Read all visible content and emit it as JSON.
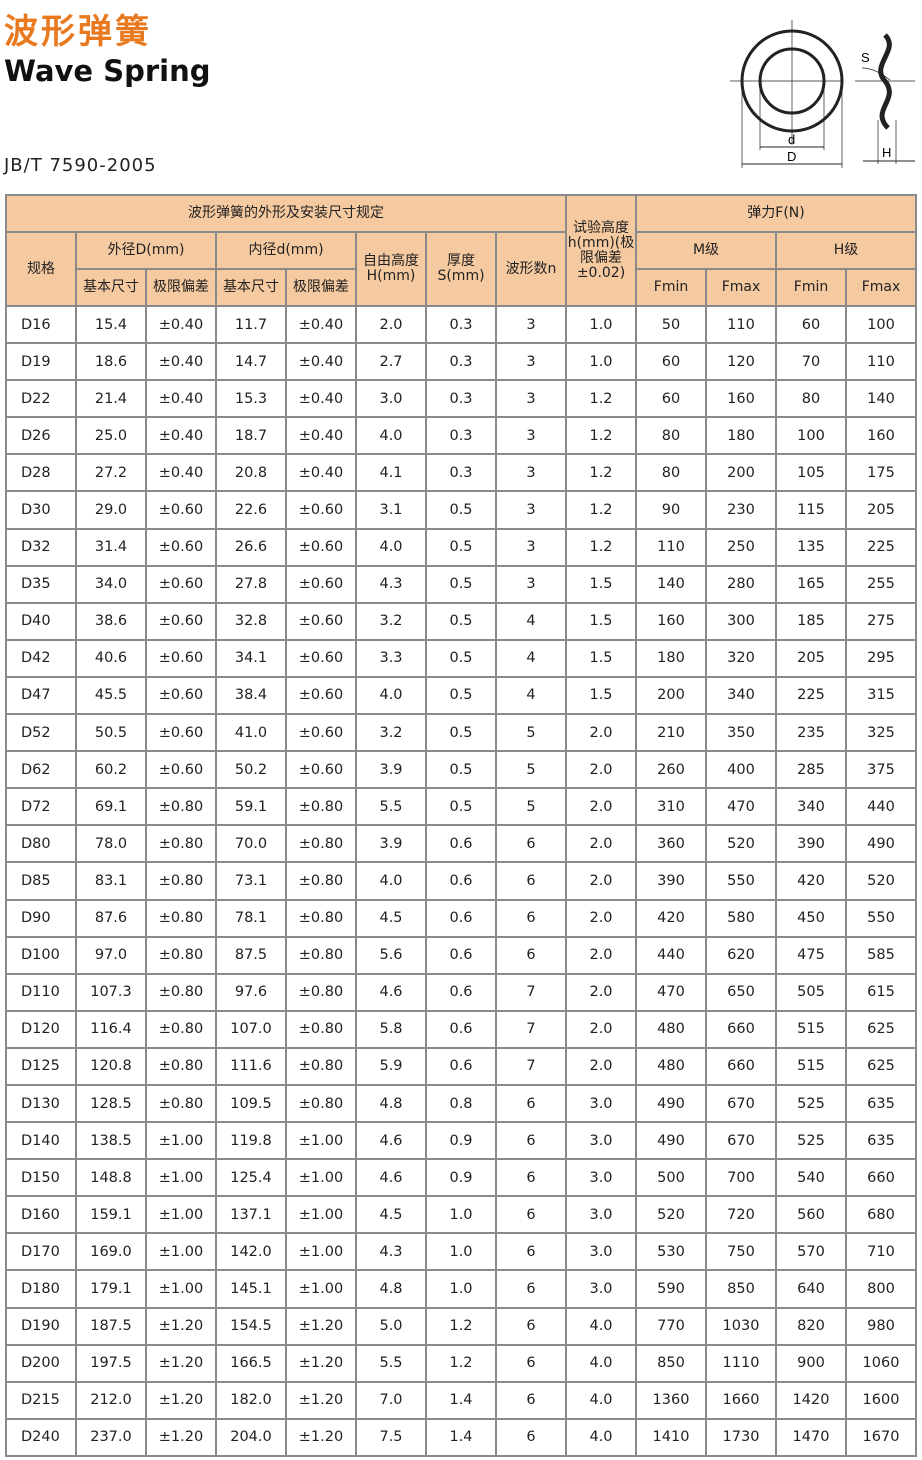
{
  "title_cn": "波形弹簧",
  "title_en": "Wave Spring",
  "standard": "JB/T 7590-2005",
  "diagram_labels": {
    "s": "S",
    "d": "d",
    "D": "D",
    "H": "H"
  },
  "header": {
    "group_dims": "波形弹簧的外形及安装尺寸规定",
    "spec": "规格",
    "outer": "外径D(mm)",
    "inner": "内径d(mm)",
    "basic": "基本尺寸",
    "tol": "极限偏差",
    "free_height": "自由高度H(mm)",
    "thickness": "厚度S(mm)",
    "waves": "波形数n",
    "test_height": "试验高度h(mm)(极限偏差±0.02)",
    "force": "弹力F(N)",
    "m_grade": "M级",
    "h_grade": "H级",
    "fmin": "Fmin",
    "fmax": "Fmax"
  },
  "rows": [
    [
      "D16",
      "15.4",
      "±0.40",
      "11.7",
      "±0.40",
      "2.0",
      "0.3",
      "3",
      "1.0",
      "50",
      "110",
      "60",
      "100"
    ],
    [
      "D19",
      "18.6",
      "±0.40",
      "14.7",
      "±0.40",
      "2.7",
      "0.3",
      "3",
      "1.0",
      "60",
      "120",
      "70",
      "110"
    ],
    [
      "D22",
      "21.4",
      "±0.40",
      "15.3",
      "±0.40",
      "3.0",
      "0.3",
      "3",
      "1.2",
      "60",
      "160",
      "80",
      "140"
    ],
    [
      "D26",
      "25.0",
      "±0.40",
      "18.7",
      "±0.40",
      "4.0",
      "0.3",
      "3",
      "1.2",
      "80",
      "180",
      "100",
      "160"
    ],
    [
      "D28",
      "27.2",
      "±0.40",
      "20.8",
      "±0.40",
      "4.1",
      "0.3",
      "3",
      "1.2",
      "80",
      "200",
      "105",
      "175"
    ],
    [
      "D30",
      "29.0",
      "±0.60",
      "22.6",
      "±0.60",
      "3.1",
      "0.5",
      "3",
      "1.2",
      "90",
      "230",
      "115",
      "205"
    ],
    [
      "D32",
      "31.4",
      "±0.60",
      "26.6",
      "±0.60",
      "4.0",
      "0.5",
      "3",
      "1.2",
      "110",
      "250",
      "135",
      "225"
    ],
    [
      "D35",
      "34.0",
      "±0.60",
      "27.8",
      "±0.60",
      "4.3",
      "0.5",
      "3",
      "1.5",
      "140",
      "280",
      "165",
      "255"
    ],
    [
      "D40",
      "38.6",
      "±0.60",
      "32.8",
      "±0.60",
      "3.2",
      "0.5",
      "4",
      "1.5",
      "160",
      "300",
      "185",
      "275"
    ],
    [
      "D42",
      "40.6",
      "±0.60",
      "34.1",
      "±0.60",
      "3.3",
      "0.5",
      "4",
      "1.5",
      "180",
      "320",
      "205",
      "295"
    ],
    [
      "D47",
      "45.5",
      "±0.60",
      "38.4",
      "±0.60",
      "4.0",
      "0.5",
      "4",
      "1.5",
      "200",
      "340",
      "225",
      "315"
    ],
    [
      "D52",
      "50.5",
      "±0.60",
      "41.0",
      "±0.60",
      "3.2",
      "0.5",
      "5",
      "2.0",
      "210",
      "350",
      "235",
      "325"
    ],
    [
      "D62",
      "60.2",
      "±0.60",
      "50.2",
      "±0.60",
      "3.9",
      "0.5",
      "5",
      "2.0",
      "260",
      "400",
      "285",
      "375"
    ],
    [
      "D72",
      "69.1",
      "±0.80",
      "59.1",
      "±0.80",
      "5.5",
      "0.5",
      "5",
      "2.0",
      "310",
      "470",
      "340",
      "440"
    ],
    [
      "D80",
      "78.0",
      "±0.80",
      "70.0",
      "±0.80",
      "3.9",
      "0.6",
      "6",
      "2.0",
      "360",
      "520",
      "390",
      "490"
    ],
    [
      "D85",
      "83.1",
      "±0.80",
      "73.1",
      "±0.80",
      "4.0",
      "0.6",
      "6",
      "2.0",
      "390",
      "550",
      "420",
      "520"
    ],
    [
      "D90",
      "87.6",
      "±0.80",
      "78.1",
      "±0.80",
      "4.5",
      "0.6",
      "6",
      "2.0",
      "420",
      "580",
      "450",
      "550"
    ],
    [
      "D100",
      "97.0",
      "±0.80",
      "87.5",
      "±0.80",
      "5.6",
      "0.6",
      "6",
      "2.0",
      "440",
      "620",
      "475",
      "585"
    ],
    [
      "D110",
      "107.3",
      "±0.80",
      "97.6",
      "±0.80",
      "4.6",
      "0.6",
      "7",
      "2.0",
      "470",
      "650",
      "505",
      "615"
    ],
    [
      "D120",
      "116.4",
      "±0.80",
      "107.0",
      "±0.80",
      "5.8",
      "0.6",
      "7",
      "2.0",
      "480",
      "660",
      "515",
      "625"
    ],
    [
      "D125",
      "120.8",
      "±0.80",
      "111.6",
      "±0.80",
      "5.9",
      "0.6",
      "7",
      "2.0",
      "480",
      "660",
      "515",
      "625"
    ],
    [
      "D130",
      "128.5",
      "±0.80",
      "109.5",
      "±0.80",
      "4.8",
      "0.8",
      "6",
      "3.0",
      "490",
      "670",
      "525",
      "635"
    ],
    [
      "D140",
      "138.5",
      "±1.00",
      "119.8",
      "±1.00",
      "4.6",
      "0.9",
      "6",
      "3.0",
      "490",
      "670",
      "525",
      "635"
    ],
    [
      "D150",
      "148.8",
      "±1.00",
      "125.4",
      "±1.00",
      "4.6",
      "0.9",
      "6",
      "3.0",
      "500",
      "700",
      "540",
      "660"
    ],
    [
      "D160",
      "159.1",
      "±1.00",
      "137.1",
      "±1.00",
      "4.5",
      "1.0",
      "6",
      "3.0",
      "520",
      "720",
      "560",
      "680"
    ],
    [
      "D170",
      "169.0",
      "±1.00",
      "142.0",
      "±1.00",
      "4.3",
      "1.0",
      "6",
      "3.0",
      "530",
      "750",
      "570",
      "710"
    ],
    [
      "D180",
      "179.1",
      "±1.00",
      "145.1",
      "±1.00",
      "4.8",
      "1.0",
      "6",
      "3.0",
      "590",
      "850",
      "640",
      "800"
    ],
    [
      "D190",
      "187.5",
      "±1.20",
      "154.5",
      "±1.20",
      "5.0",
      "1.2",
      "6",
      "4.0",
      "770",
      "1030",
      "820",
      "980"
    ],
    [
      "D200",
      "197.5",
      "±1.20",
      "166.5",
      "±1.20",
      "5.5",
      "1.2",
      "6",
      "4.0",
      "850",
      "1110",
      "900",
      "1060"
    ],
    [
      "D215",
      "212.0",
      "±1.20",
      "182.0",
      "±1.20",
      "7.0",
      "1.4",
      "6",
      "4.0",
      "1360",
      "1660",
      "1420",
      "1600"
    ],
    [
      "D240",
      "237.0",
      "±1.20",
      "204.0",
      "±1.20",
      "7.5",
      "1.4",
      "6",
      "4.0",
      "1410",
      "1730",
      "1470",
      "1670"
    ]
  ]
}
